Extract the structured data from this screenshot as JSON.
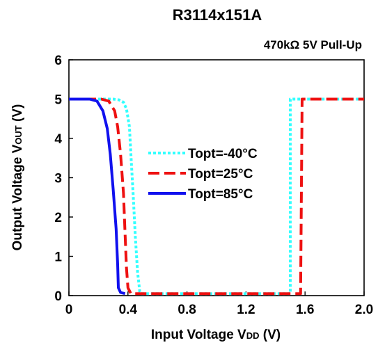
{
  "chart_data": {
    "type": "line",
    "title": "R3114x151A",
    "subtitle": "470kΩ 5V Pull-Up",
    "xlabel": {
      "main": "Input Voltage V",
      "sub": "DD",
      "unit": " (V)"
    },
    "ylabel": {
      "main": "Output Voltage V",
      "sub": "OUT",
      "unit": " (V)"
    },
    "xlim": [
      0,
      2.0
    ],
    "ylim": [
      0,
      6
    ],
    "xticks": [
      0,
      0.4,
      0.8,
      1.2,
      1.6,
      2.0
    ],
    "xtick_labels": [
      "0",
      "0.4",
      "0.8",
      "1.2",
      "1.6",
      "2.0"
    ],
    "yticks": [
      0,
      1,
      2,
      3,
      4,
      5,
      6
    ],
    "ytick_labels": [
      "0",
      "1",
      "2",
      "3",
      "4",
      "5",
      "6"
    ],
    "grid": false,
    "legend_position": "center",
    "series": [
      {
        "name": "Topt=-40°C",
        "color": "#33ffff",
        "dash": "dotted",
        "points": [
          [
            0,
            5.0
          ],
          [
            0.3,
            5.0
          ],
          [
            0.34,
            4.98
          ],
          [
            0.37,
            4.92
          ],
          [
            0.39,
            4.75
          ],
          [
            0.41,
            4.3
          ],
          [
            0.42,
            3.6
          ],
          [
            0.435,
            2.6
          ],
          [
            0.45,
            1.5
          ],
          [
            0.465,
            0.6
          ],
          [
            0.48,
            0.1
          ],
          [
            0.49,
            0.05
          ],
          [
            1.5,
            0.05
          ],
          [
            1.5,
            5.0
          ],
          [
            2.0,
            5.0
          ]
        ]
      },
      {
        "name": "Topt=25°C",
        "color": "#ee1111",
        "dash": "dashed",
        "points": [
          [
            0,
            5.0
          ],
          [
            0.22,
            5.0
          ],
          [
            0.27,
            4.95
          ],
          [
            0.31,
            4.7
          ],
          [
            0.33,
            4.3
          ],
          [
            0.35,
            3.6
          ],
          [
            0.37,
            2.6
          ],
          [
            0.38,
            1.6
          ],
          [
            0.39,
            0.7
          ],
          [
            0.4,
            0.2
          ],
          [
            0.42,
            0.05
          ],
          [
            1.57,
            0.05
          ],
          [
            1.58,
            5.0
          ],
          [
            2.0,
            5.0
          ]
        ]
      },
      {
        "name": "Topt=85°C",
        "color": "#1111ee",
        "dash": "solid",
        "points": [
          [
            0,
            5.0
          ],
          [
            0.14,
            5.0
          ],
          [
            0.19,
            4.95
          ],
          [
            0.23,
            4.7
          ],
          [
            0.26,
            4.25
          ],
          [
            0.28,
            3.6
          ],
          [
            0.3,
            2.7
          ],
          [
            0.32,
            1.7
          ],
          [
            0.33,
            0.8
          ],
          [
            0.335,
            0.2
          ],
          [
            0.35,
            0.08
          ],
          [
            0.38,
            0.05
          ]
        ]
      }
    ]
  }
}
